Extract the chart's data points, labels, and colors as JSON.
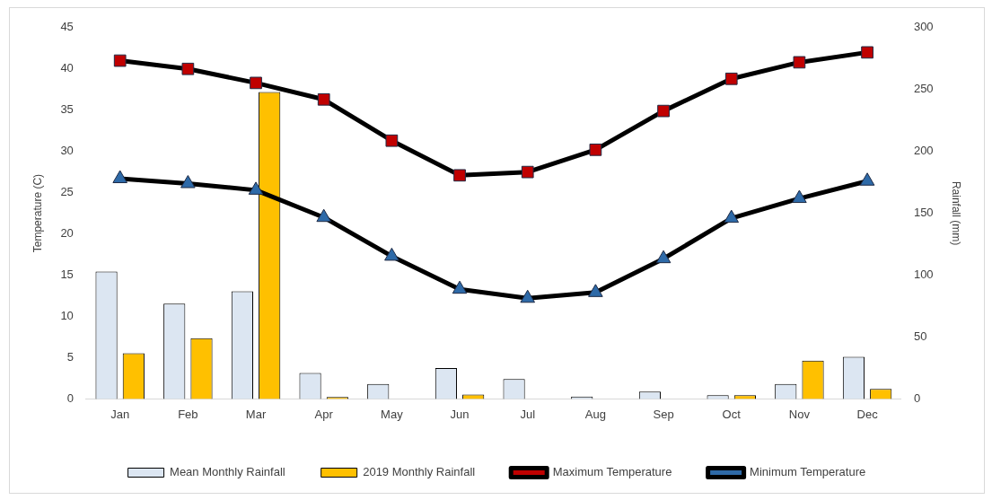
{
  "chart_data": {
    "type": "bar",
    "categories": [
      "Jan",
      "Feb",
      "Mar",
      "Apr",
      "May",
      "Jun",
      "Jul",
      "Aug",
      "Sep",
      "Oct",
      "Nov",
      "Dec"
    ],
    "ylabel": "Temperature (C)",
    "y2label": "Rainfall (mm)",
    "ylim": [
      0,
      45
    ],
    "yticks": [
      0,
      5,
      10,
      15,
      20,
      25,
      30,
      35,
      40,
      45
    ],
    "y2lim": [
      0,
      300
    ],
    "y2ticks": [
      0,
      50,
      100,
      150,
      200,
      250,
      300
    ],
    "legend": "bottom",
    "series": [
      {
        "name": "Mean Monthly Rainfall",
        "axis": "y2",
        "color": "#dce6f2",
        "values": [
          103,
          77,
          87,
          21,
          12,
          25,
          16,
          2,
          6,
          3,
          12,
          34
        ]
      },
      {
        "name": "2019 Monthly Rainfall",
        "axis": "y2",
        "color": "#ffc000",
        "values": [
          37,
          49,
          248,
          1.5,
          0,
          3.5,
          0,
          0,
          0,
          3,
          31,
          8
        ]
      },
      {
        "name": "Maximum Temperature",
        "type": "line",
        "axis": "y",
        "color": "#c00000",
        "marker": "square",
        "values": [
          41,
          40,
          38.3,
          36.3,
          31.3,
          27.1,
          27.5,
          30.2,
          34.9,
          38.8,
          40.8,
          42
        ]
      },
      {
        "name": "Minimum Temperature",
        "type": "line",
        "axis": "y",
        "color": "#2e6aa8",
        "marker": "triangle",
        "values": [
          26.7,
          26.1,
          25.3,
          22,
          17.3,
          13.3,
          12.2,
          12.9,
          17,
          21.9,
          24.3,
          26.4
        ]
      }
    ]
  }
}
